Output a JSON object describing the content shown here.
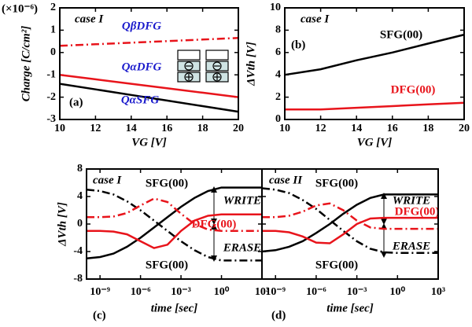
{
  "chart_data": [
    {
      "type": "line",
      "xlabel": "VG [V]",
      "ylabel": "Charge [C/cm²]",
      "annotations": [
        "case I",
        "(a)",
        "(×10⁻⁶)"
      ],
      "x": [
        10,
        12,
        14,
        16,
        18,
        20
      ],
      "xlim": [
        10,
        20
      ],
      "xticks": [
        10,
        12,
        14,
        16,
        18,
        20
      ],
      "ylim": [
        -3,
        2
      ],
      "yticks": [
        -3,
        -2,
        -1,
        0,
        1,
        2
      ],
      "label_color": "#1a1acc",
      "series": [
        {
          "name": "QβDFG",
          "color": "#e8141b",
          "dash": "dashdot",
          "values": [
            0.3,
            0.37,
            0.44,
            0.51,
            0.58,
            0.65
          ]
        },
        {
          "name": "QαDFG",
          "color": "#e8141b",
          "dash": "solid",
          "values": [
            -1.0,
            -1.2,
            -1.4,
            -1.6,
            -1.8,
            -2.0
          ]
        },
        {
          "name": "QαSFG",
          "color": "#000000",
          "dash": "solid",
          "values": [
            -1.4,
            -1.65,
            -1.9,
            -2.15,
            -2.4,
            -2.65
          ]
        }
      ]
    },
    {
      "type": "line",
      "xlabel": "VG [V]",
      "ylabel": "ΔVth [V]",
      "annotations": [
        "case I",
        "(b)"
      ],
      "x": [
        10,
        12,
        14,
        16,
        18,
        20
      ],
      "xlim": [
        10,
        20
      ],
      "xticks": [
        10,
        12,
        14,
        16,
        18,
        20
      ],
      "ylim": [
        0,
        10
      ],
      "yticks": [
        0,
        2,
        4,
        6,
        8,
        10
      ],
      "series": [
        {
          "name": "SFG(00)",
          "color": "#000000",
          "dash": "solid",
          "values": [
            4.0,
            4.5,
            5.3,
            6.0,
            6.8,
            7.6
          ]
        },
        {
          "name": "DFG(00)",
          "color": "#e8141b",
          "dash": "solid",
          "values": [
            0.9,
            0.9,
            1.05,
            1.2,
            1.35,
            1.5
          ]
        }
      ]
    },
    {
      "type": "line",
      "xlabel": "time [sec]",
      "ylabel": "ΔVth [V]",
      "annotations": [
        "case I",
        "(c)",
        "WRITE",
        "ERASE"
      ],
      "xscale": "log",
      "x": [
        1e-10,
        1e-09,
        1e-08,
        1e-07,
        1e-06,
        1e-05,
        0.0001,
        0.001,
        0.01,
        0.1,
        1,
        10,
        100,
        1000
      ],
      "xlim": [
        1e-10,
        1000
      ],
      "xticks": [
        {
          "value": 1e-09,
          "label": "10⁻⁹"
        },
        {
          "value": 1e-06,
          "label": "10⁻⁶"
        },
        {
          "value": 0.001,
          "label": "10⁻³"
        },
        {
          "value": 1,
          "label": "10⁰"
        },
        {
          "value": 1000,
          "label": "10³"
        }
      ],
      "ylim": [
        -8,
        8
      ],
      "yticks": [
        -8,
        -4,
        0,
        4,
        8
      ],
      "series": [
        {
          "name": "SFG(00)",
          "color": "#000000",
          "dash": "solid",
          "values": [
            -5,
            -4.8,
            -4.3,
            -3.3,
            -2,
            -0.5,
            1,
            2.5,
            3.8,
            4.8,
            5.3,
            5.3,
            5.3,
            5.3
          ]
        },
        {
          "name": "SFG(00)",
          "color": "#000000",
          "dash": "dashdot",
          "values": [
            5,
            4.8,
            4.3,
            3.3,
            2,
            0.5,
            -1,
            -2.5,
            -3.8,
            -4.8,
            -5.3,
            -5.3,
            -5.3,
            -5.3
          ]
        },
        {
          "name": "DFG(00)",
          "color": "#e8141b",
          "dash": "solid",
          "values": [
            -1,
            -1,
            -1.1,
            -1.5,
            -2.5,
            -3.5,
            -3,
            -1,
            0.5,
            1.2,
            1.4,
            1.4,
            1.4,
            1.4
          ]
        },
        {
          "color": "#e8141b",
          "dash": "dashdot",
          "values": [
            1,
            1,
            1.1,
            1.6,
            2.7,
            3.7,
            3.2,
            1.5,
            0,
            -0.8,
            -1,
            -1,
            -1,
            -1
          ]
        }
      ]
    },
    {
      "type": "line",
      "xlabel": "time [sec]",
      "annotations": [
        "case II",
        "(d)",
        "WRITE",
        "ERASE"
      ],
      "xscale": "log",
      "x": [
        1e-10,
        1e-09,
        1e-08,
        1e-07,
        1e-06,
        1e-05,
        0.0001,
        0.001,
        0.01,
        0.1,
        1,
        10,
        100,
        1000
      ],
      "xlim": [
        1e-10,
        1000
      ],
      "xticks": [
        {
          "value": 1e-09,
          "label": "10⁻⁹"
        },
        {
          "value": 1e-06,
          "label": "10⁻⁶"
        },
        {
          "value": 0.001,
          "label": "10⁻³"
        },
        {
          "value": 1,
          "label": "10⁰"
        },
        {
          "value": 1000,
          "label": "10³"
        }
      ],
      "ylim": [
        -8,
        8
      ],
      "yticks": [
        -8,
        -4,
        0,
        4,
        8
      ],
      "ytick_labels": false,
      "series": [
        {
          "name": "SFG(00)",
          "color": "#000000",
          "dash": "solid",
          "values": [
            -4,
            -3.8,
            -3.3,
            -2.5,
            -1.3,
            0,
            1.5,
            2.8,
            3.8,
            4.3,
            4.3,
            4.3,
            4.3,
            4.3
          ]
        },
        {
          "name": "SFG(00)",
          "color": "#000000",
          "dash": "dashdot",
          "values": [
            5.2,
            5.0,
            4.5,
            3.5,
            2.2,
            0.6,
            -1,
            -2.5,
            -3.6,
            -4.1,
            -4.2,
            -4.2,
            -4.2,
            -4.2
          ]
        },
        {
          "name": "DFG(00)",
          "color": "#e8141b",
          "dash": "solid",
          "values": [
            -1,
            -1,
            -1.2,
            -1.8,
            -2.7,
            -2.8,
            -1.5,
            0,
            0.8,
            0.9,
            0.9,
            0.9,
            0.9,
            0.9
          ]
        },
        {
          "color": "#e8141b",
          "dash": "dashdot",
          "values": [
            1,
            1,
            1.2,
            1.8,
            2.7,
            3,
            2,
            0.5,
            -0.5,
            -0.7,
            -0.7,
            -0.7,
            -0.7,
            -0.7
          ]
        }
      ]
    }
  ]
}
